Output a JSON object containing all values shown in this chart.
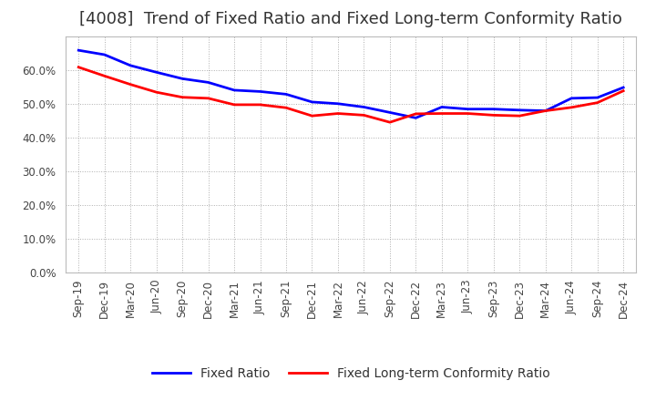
{
  "title": "[4008]  Trend of Fixed Ratio and Fixed Long-term Conformity Ratio",
  "labels": [
    "Sep-19",
    "Dec-19",
    "Mar-20",
    "Jun-20",
    "Sep-20",
    "Dec-20",
    "Mar-21",
    "Jun-21",
    "Sep-21",
    "Dec-21",
    "Mar-22",
    "Jun-22",
    "Sep-22",
    "Dec-22",
    "Mar-23",
    "Jun-23",
    "Sep-23",
    "Dec-23",
    "Mar-24",
    "Jun-24",
    "Sep-24",
    "Dec-24"
  ],
  "fixed_ratio": [
    0.658,
    0.645,
    0.613,
    0.593,
    0.574,
    0.563,
    0.54,
    0.536,
    0.528,
    0.505,
    0.5,
    0.49,
    0.474,
    0.458,
    0.49,
    0.484,
    0.484,
    0.481,
    0.479,
    0.516,
    0.518,
    0.548
  ],
  "fixed_lt_ratio": [
    0.608,
    0.582,
    0.557,
    0.534,
    0.519,
    0.516,
    0.497,
    0.497,
    0.488,
    0.464,
    0.471,
    0.466,
    0.445,
    0.47,
    0.471,
    0.471,
    0.466,
    0.464,
    0.479,
    0.489,
    0.503,
    0.538
  ],
  "fixed_ratio_color": "#0000FF",
  "fixed_lt_ratio_color": "#FF0000",
  "ylim": [
    0.0,
    0.7
  ],
  "yticks": [
    0.0,
    0.1,
    0.2,
    0.3,
    0.4,
    0.5,
    0.6
  ],
  "background_color": "#FFFFFF",
  "grid_color": "#999999",
  "legend_fixed_ratio": "Fixed Ratio",
  "legend_fixed_lt_ratio": "Fixed Long-term Conformity Ratio",
  "title_fontsize": 13,
  "tick_fontsize": 8.5,
  "legend_fontsize": 10
}
